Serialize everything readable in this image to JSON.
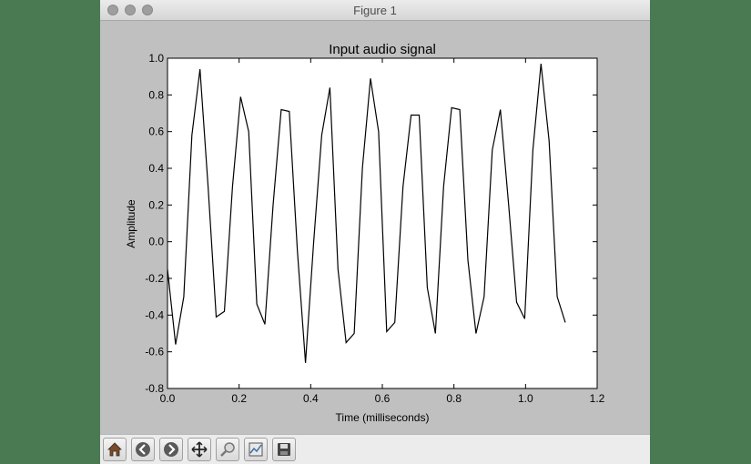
{
  "window": {
    "title": "Figure 1"
  },
  "toolbar": {
    "buttons": [
      {
        "name": "home-button",
        "icon": "home-icon"
      },
      {
        "name": "back-button",
        "icon": "back-arrow-icon"
      },
      {
        "name": "forward-button",
        "icon": "forward-arrow-icon"
      },
      {
        "name": "pan-button",
        "icon": "pan-icon"
      },
      {
        "name": "zoom-button",
        "icon": "zoom-icon"
      },
      {
        "name": "configure-subplots-button",
        "icon": "configure-subplots-icon"
      },
      {
        "name": "save-button",
        "icon": "save-icon"
      }
    ]
  },
  "chart_data": {
    "type": "line",
    "title": "Input audio signal",
    "xlabel": "Time (milliseconds)",
    "ylabel": "Amplitude",
    "xlim": [
      0.0,
      1.2
    ],
    "ylim": [
      -0.8,
      1.0
    ],
    "xticks": [
      "0.0",
      "0.2",
      "0.4",
      "0.6",
      "0.8",
      "1.0",
      "1.2"
    ],
    "yticks": [
      "-0.8",
      "-0.6",
      "-0.4",
      "-0.2",
      "0.0",
      "0.2",
      "0.4",
      "0.6",
      "0.8",
      "1.0"
    ],
    "xtick_values": [
      0.0,
      0.2,
      0.4,
      0.6,
      0.8,
      1.0,
      1.2
    ],
    "ytick_values": [
      -0.8,
      -0.6,
      -0.4,
      -0.2,
      0.0,
      0.2,
      0.4,
      0.6,
      0.8,
      1.0
    ],
    "grid": false,
    "line_color": "#000000",
    "x": [
      0.0,
      0.0227,
      0.0454,
      0.0681,
      0.0907,
      0.1134,
      0.1361,
      0.1588,
      0.1814,
      0.2041,
      0.2268,
      0.2494,
      0.2721,
      0.2948,
      0.3175,
      0.3401,
      0.3628,
      0.3855,
      0.4082,
      0.4308,
      0.4535,
      0.4762,
      0.4989,
      0.5215,
      0.5442,
      0.5669,
      0.5896,
      0.6122,
      0.6349,
      0.6576,
      0.6803,
      0.7029,
      0.7256,
      0.7483,
      0.771,
      0.7936,
      0.8163,
      0.839,
      0.8617,
      0.8843,
      0.907,
      0.9297,
      0.9524,
      0.975,
      0.9977,
      1.0204,
      1.0431,
      1.0658,
      1.0884,
      1.1111
    ],
    "values": [
      -0.15,
      -0.56,
      -0.3,
      0.58,
      0.94,
      0.3,
      -0.41,
      -0.38,
      0.3,
      0.79,
      0.6,
      -0.34,
      -0.45,
      0.2,
      0.72,
      0.71,
      -0.05,
      -0.66,
      0.0,
      0.58,
      0.84,
      -0.15,
      -0.55,
      -0.5,
      0.4,
      0.89,
      0.6,
      -0.49,
      -0.44,
      0.3,
      0.69,
      0.69,
      -0.25,
      -0.5,
      0.3,
      0.73,
      0.72,
      -0.1,
      -0.5,
      -0.3,
      0.5,
      0.72,
      0.21,
      -0.33,
      -0.42,
      0.5,
      0.97,
      0.55,
      -0.3,
      -0.44
    ]
  }
}
